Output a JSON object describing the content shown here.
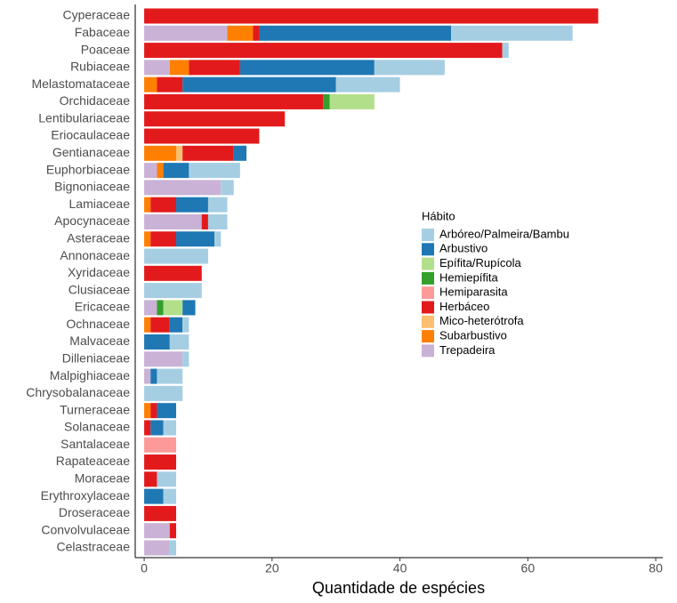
{
  "chart_data": {
    "type": "stacked-barh",
    "x_label": "Quantidade de espécies",
    "legend_title": "Hábito",
    "categories": [
      "Cyperaceae",
      "Fabaceae",
      "Poaceae",
      "Rubiaceae",
      "Melastomataceae",
      "Orchidaceae",
      "Lentibulariaceae",
      "Eriocaulaceae",
      "Gentianaceae",
      "Euphorbiaceae",
      "Bignoniaceae",
      "Lamiaceae",
      "Apocynaceae",
      "Asteraceae",
      "Annonaceae",
      "Xyridaceae",
      "Clusiaceae",
      "Ericaceae",
      "Ochnaceae",
      "Malvaceae",
      "Dilleniaceae",
      "Malpighiaceae",
      "Chrysobalanaceae",
      "Turneraceae",
      "Solanaceae",
      "Santalaceae",
      "Rapateaceae",
      "Moraceae",
      "Erythroxylaceae",
      "Droseraceae",
      "Convolvulaceae",
      "Celastraceae"
    ],
    "series": [
      {
        "name": "Arbóreo/Palmeira/Bambu",
        "color": "#a6cee3",
        "values": [
          0,
          19,
          1,
          11,
          10,
          0,
          0,
          0,
          0,
          8,
          2,
          3,
          3,
          1,
          10,
          0,
          9,
          0,
          1,
          3,
          1,
          4,
          6,
          0,
          2,
          0,
          0,
          3,
          2,
          0,
          0,
          1
        ]
      },
      {
        "name": "Arbustivo",
        "color": "#1f78b4",
        "values": [
          0,
          30,
          0,
          21,
          24,
          0,
          0,
          0,
          2,
          4,
          0,
          5,
          0,
          6,
          0,
          0,
          0,
          2,
          2,
          4,
          0,
          1,
          0,
          3,
          2,
          0,
          0,
          0,
          3,
          0,
          0,
          0
        ]
      },
      {
        "name": "Epífita/Rupícola",
        "color": "#b2df8a",
        "values": [
          0,
          0,
          0,
          0,
          0,
          7,
          0,
          0,
          0,
          0,
          0,
          0,
          0,
          0,
          0,
          0,
          0,
          3,
          0,
          0,
          0,
          0,
          0,
          0,
          0,
          0,
          0,
          0,
          0,
          0,
          0,
          0
        ]
      },
      {
        "name": "Hemiepífita",
        "color": "#33a02c",
        "values": [
          0,
          0,
          0,
          0,
          0,
          1,
          0,
          0,
          0,
          0,
          0,
          0,
          0,
          0,
          0,
          0,
          0,
          1,
          0,
          0,
          0,
          0,
          0,
          0,
          0,
          0,
          0,
          0,
          0,
          0,
          0,
          0
        ]
      },
      {
        "name": "Hemiparasita",
        "color": "#fb9a99",
        "values": [
          0,
          0,
          0,
          0,
          0,
          0,
          0,
          0,
          0,
          0,
          0,
          0,
          0,
          0,
          0,
          0,
          0,
          0,
          0,
          0,
          0,
          0,
          0,
          0,
          0,
          5,
          0,
          0,
          0,
          0,
          0,
          0
        ]
      },
      {
        "name": "Herbáceo",
        "color": "#e31a1c",
        "values": [
          71,
          1,
          56,
          8,
          4,
          28,
          22,
          18,
          8,
          0,
          0,
          4,
          1,
          4,
          0,
          9,
          0,
          0,
          3,
          0,
          0,
          0,
          0,
          1,
          1,
          0,
          5,
          2,
          0,
          5,
          1,
          0
        ]
      },
      {
        "name": "Mico-heterótrofa",
        "color": "#fdbf6f",
        "values": [
          0,
          0,
          0,
          0,
          0,
          0,
          0,
          0,
          1,
          0,
          0,
          0,
          0,
          0,
          0,
          0,
          0,
          0,
          0,
          0,
          0,
          0,
          0,
          0,
          0,
          0,
          0,
          0,
          0,
          0,
          0,
          0
        ]
      },
      {
        "name": "Subarbustivo",
        "color": "#ff7f00",
        "values": [
          0,
          4,
          0,
          3,
          2,
          0,
          0,
          0,
          5,
          1,
          0,
          1,
          0,
          1,
          0,
          0,
          0,
          0,
          1,
          0,
          0,
          0,
          0,
          1,
          0,
          0,
          0,
          0,
          0,
          0,
          0,
          0
        ]
      },
      {
        "name": "Trepadeira",
        "color": "#cab2d6",
        "values": [
          0,
          13,
          0,
          4,
          0,
          0,
          0,
          0,
          0,
          2,
          12,
          0,
          9,
          0,
          0,
          0,
          0,
          2,
          0,
          0,
          6,
          1,
          0,
          0,
          0,
          0,
          0,
          0,
          0,
          0,
          4,
          4
        ]
      }
    ],
    "xlim": [
      -1.4,
      81.1
    ],
    "xticks": [
      0,
      20,
      40,
      60,
      80
    ],
    "grid": false
  }
}
